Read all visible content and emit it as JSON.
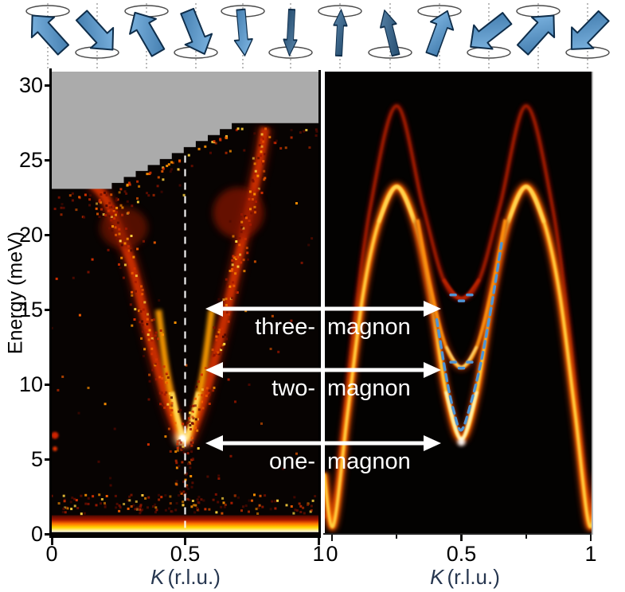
{
  "axes": {
    "ylabel": "Energy (meV)",
    "yticks": [
      0,
      5,
      10,
      15,
      20,
      25,
      30
    ],
    "xlabel_k": "K",
    "xlabel_units": "(r.l.u.)",
    "xtick_labels": [
      "0",
      "0.5",
      "1"
    ],
    "xtick_positions": [
      0,
      0.5,
      1
    ],
    "xminor_positions": [
      0.25,
      0.75
    ]
  },
  "annotations": [
    {
      "prefix": "three-",
      "suffix": "magnon",
      "energy_meV": 15.1
    },
    {
      "prefix": "two-",
      "suffix": "magnon",
      "energy_meV": 11.0
    },
    {
      "prefix": "one-",
      "suffix": "magnon",
      "energy_meV": 6.1
    }
  ],
  "colors": {
    "gray_region": "#ababab",
    "panel_black": "#070302",
    "heat_dark": "#7a1000",
    "heat_red": "#cc2e00",
    "heat_orange": "#ff7300",
    "heat_yellow": "#ffd400",
    "heat_peak": "#ffffff",
    "blue_overlay": "#4f94d4",
    "annotation_white": "#ffffff",
    "xlabel_color": "#26364f",
    "spin_arrow_blue": "#4b8fc9"
  },
  "spin_row": {
    "description": "cycloidal spin rotation sequence of 12 arrow icons with precession ellipses",
    "icons": [
      {
        "angle": -42,
        "width": 1.0,
        "ellipse": "top"
      },
      {
        "angle": 138,
        "width": 1.0,
        "ellipse": "bottom"
      },
      {
        "angle": -30,
        "width": 1.0,
        "ellipse": "top"
      },
      {
        "angle": 158,
        "width": 0.95,
        "ellipse": "bottom"
      },
      {
        "angle": 175,
        "width": 0.6,
        "ellipse": "top"
      },
      {
        "angle": 183,
        "width": 0.45,
        "ellipse": "bottom"
      },
      {
        "angle": 3,
        "width": 0.45,
        "ellipse": "top"
      },
      {
        "angle": -14,
        "width": 0.55,
        "ellipse": "bottom"
      },
      {
        "angle": 20,
        "width": 0.8,
        "ellipse": "top"
      },
      {
        "angle": -128,
        "width": 1.0,
        "ellipse": "bottom"
      },
      {
        "angle": 42,
        "width": 1.0,
        "ellipse": "top"
      },
      {
        "angle": -136,
        "width": 1.0,
        "ellipse": "bottom"
      }
    ]
  },
  "chart_data": [
    {
      "type": "heatmap",
      "panel": "left (experiment, inelastic neutron scattering)",
      "xlabel": "K (r.l.u.)",
      "ylabel": "Energy (meV)",
      "xlim": [
        0,
        1
      ],
      "ylim": [
        0,
        31
      ],
      "xticks": [
        0,
        0.5,
        1
      ],
      "yticks": [
        0,
        5,
        10,
        15,
        20,
        25,
        30
      ],
      "colormap": "hot (black-red-orange-yellow-white)",
      "features": {
        "elastic_line_E": 0.7,
        "magnon_V_vertex": {
          "K": 0.5,
          "E": 6.2
        },
        "left_arm": [
          [
            0.15,
            23.5
          ],
          [
            0.2,
            22.5
          ],
          [
            0.25,
            20.5
          ],
          [
            0.3,
            18.0
          ],
          [
            0.35,
            14.5
          ],
          [
            0.4,
            11.0
          ],
          [
            0.45,
            8.0
          ],
          [
            0.5,
            6.2
          ]
        ],
        "right_arm": [
          [
            0.5,
            6.2
          ],
          [
            0.55,
            8.0
          ],
          [
            0.6,
            11.0
          ],
          [
            0.65,
            14.5
          ],
          [
            0.7,
            18.5
          ],
          [
            0.75,
            22.5
          ],
          [
            0.78,
            25.0
          ],
          [
            0.8,
            27.2
          ]
        ],
        "inner_bright_V": [
          [
            0.4,
            15.0
          ],
          [
            0.44,
            10.0
          ],
          [
            0.5,
            6.3
          ],
          [
            0.56,
            10.0
          ],
          [
            0.6,
            15.0
          ]
        ],
        "bright_core_V": [
          [
            0.45,
            9.5
          ],
          [
            0.5,
            6.4
          ],
          [
            0.55,
            9.5
          ]
        ],
        "kinematic_gray_boundary": [
          [
            0,
            23.1
          ],
          [
            0.225,
            23.1
          ],
          [
            0.72,
            27.5
          ],
          [
            1,
            27.6
          ]
        ],
        "dashed_guide_line_K": 0.5,
        "edge_blob": {
          "K": 0.012,
          "E": 6.6
        }
      }
    },
    {
      "type": "heatmap",
      "panel": "right (theory / simulation)",
      "xlabel": "K (r.l.u.)",
      "xlim": [
        0,
        1
      ],
      "ylim": [
        0,
        31
      ],
      "xticks": [
        0,
        0.5,
        1
      ],
      "colormap": "hot (black-red-orange-yellow-white)",
      "series": [
        {
          "name": "one-magnon",
          "points": [
            [
              -0.03,
              4
            ],
            [
              0.005,
              0.5
            ],
            [
              0.06,
              8
            ],
            [
              0.12,
              16
            ],
            [
              0.18,
              20.8
            ],
            [
              0.25,
              23.2
            ],
            [
              0.32,
              20.8
            ],
            [
              0.38,
              16
            ],
            [
              0.44,
              9.5
            ],
            [
              0.5,
              6.3
            ],
            [
              0.56,
              9.5
            ],
            [
              0.62,
              16
            ],
            [
              0.68,
              20.8
            ],
            [
              0.75,
              23.2
            ],
            [
              0.82,
              20.8
            ],
            [
              0.88,
              16
            ],
            [
              0.94,
              8
            ],
            [
              0.995,
              0.5
            ],
            [
              1.03,
              4
            ]
          ]
        },
        {
          "name": "two-magnon",
          "points": [
            [
              0.33,
              21
            ],
            [
              0.38,
              16.5
            ],
            [
              0.44,
              12.5
            ],
            [
              0.5,
              11.1
            ],
            [
              0.56,
              12.5
            ],
            [
              0.62,
              16.5
            ],
            [
              0.67,
              21
            ]
          ]
        },
        {
          "name": "three-magnon",
          "points": [
            [
              -0.03,
              1
            ],
            [
              0.02,
              3
            ],
            [
              0.08,
              13
            ],
            [
              0.15,
              22
            ],
            [
              0.25,
              28.6
            ],
            [
              0.35,
              22
            ],
            [
              0.43,
              17
            ],
            [
              0.5,
              15.7
            ],
            [
              0.57,
              17
            ],
            [
              0.65,
              22
            ],
            [
              0.75,
              28.6
            ],
            [
              0.85,
              22
            ],
            [
              0.92,
              13
            ],
            [
              0.98,
              3
            ],
            [
              1.03,
              1
            ]
          ]
        },
        {
          "name": "blue-dashed-fit (one-magnon dispersion)",
          "points": [
            [
              0.405,
              14.3
            ],
            [
              0.44,
              10.6
            ],
            [
              0.47,
              8.2
            ],
            [
              0.5,
              6.9
            ],
            [
              0.54,
              8.9
            ],
            [
              0.58,
              11.8
            ],
            [
              0.62,
              15.6
            ],
            [
              0.655,
              19.4
            ]
          ]
        }
      ],
      "blue_markers_three_magnon": [
        [
          0.468,
          15.95
        ],
        [
          0.5,
          15.55
        ],
        [
          0.532,
          15.95
        ]
      ],
      "blue_markers_two_magnon": [
        [
          0.468,
          11.45
        ],
        [
          0.5,
          11.05
        ],
        [
          0.532,
          11.45
        ]
      ]
    }
  ]
}
